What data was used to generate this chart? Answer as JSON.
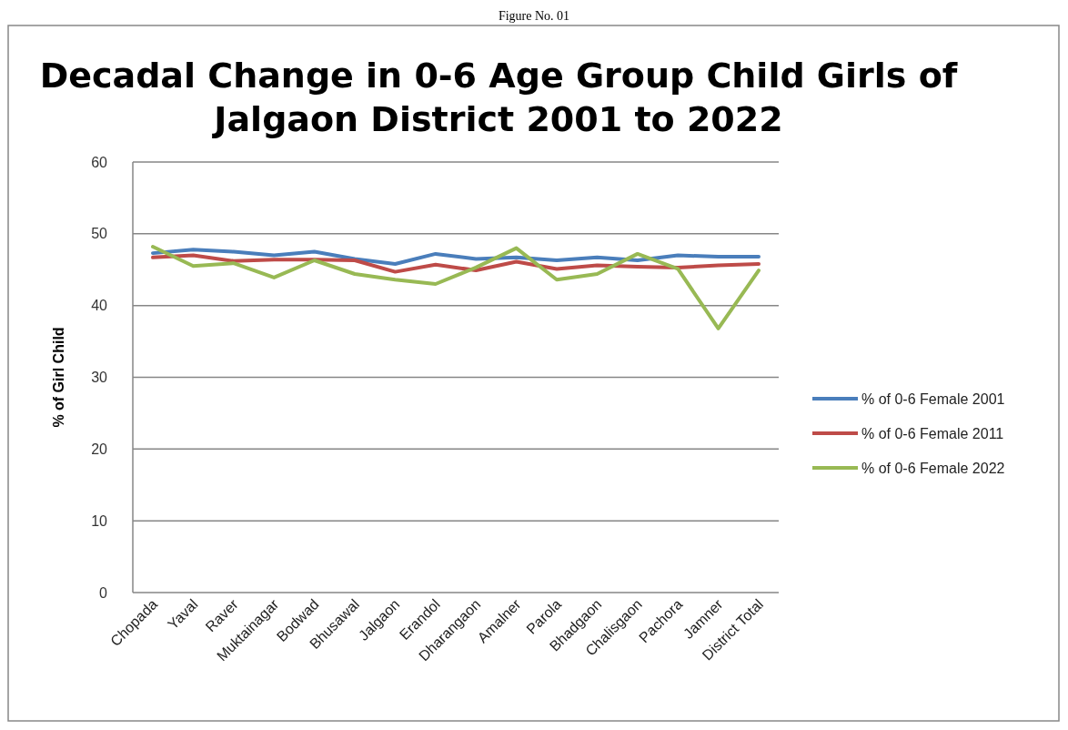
{
  "chart_data": {
    "type": "line",
    "title": "Decadal Change in 0-6 Age Group Child Girls of Jalgaon District 2001 to 2022",
    "ylabel": "% of Girl Child",
    "annotations": [
      "Figure No. 01"
    ],
    "categories": [
      "Chopada",
      "Yaval",
      "Raver",
      "Muktainagar",
      "Bodwad",
      "Bhusawal",
      "Jalgaon",
      "Erandol",
      "Dharangaon",
      "Amalner",
      "Parola",
      "Bhadgaon",
      "Chalisgaon",
      "Pachora",
      "Jamner",
      "District Total"
    ],
    "ylim": [
      0,
      60
    ],
    "yticks": [
      0,
      10,
      20,
      30,
      40,
      50,
      60
    ],
    "grid": "y",
    "legend": "right",
    "marker": "none",
    "series": [
      {
        "name": "% of 0-6 Female 2001",
        "color": "#4a7ebb",
        "values": [
          47.3,
          47.8,
          47.5,
          47.0,
          47.5,
          46.5,
          45.8,
          47.2,
          46.5,
          46.7,
          46.3,
          46.7,
          46.3,
          47.0,
          46.8,
          46.8
        ]
      },
      {
        "name": "% of 0-6 Female 2011",
        "color": "#be4b48",
        "values": [
          46.7,
          47.0,
          46.2,
          46.4,
          46.4,
          46.3,
          44.7,
          45.7,
          44.9,
          46.1,
          45.1,
          45.6,
          45.4,
          45.3,
          45.6,
          45.8
        ]
      },
      {
        "name": "% of 0-6 Female 2022",
        "color": "#98b954",
        "values": [
          48.2,
          45.5,
          45.9,
          43.9,
          46.3,
          44.4,
          43.6,
          43.0,
          45.3,
          48.0,
          43.6,
          44.4,
          47.2,
          45.1,
          36.8,
          44.9
        ]
      }
    ]
  }
}
